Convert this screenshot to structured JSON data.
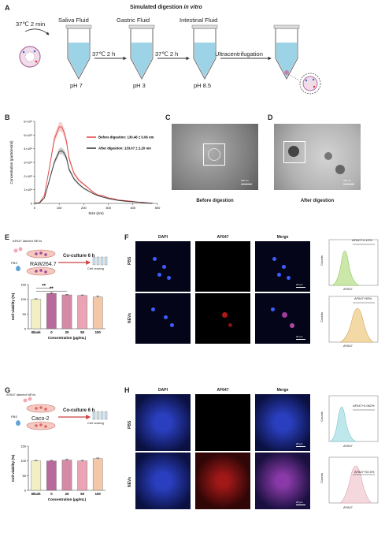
{
  "panelA": {
    "letter": "A",
    "title": "Simulated digestion ",
    "title_italic": "in vitro",
    "start": "37℃ 2 min",
    "fluids": [
      "Saliva Fluid",
      "Gastric Fluid",
      "Intestinal Fluid"
    ],
    "phs": [
      "pH 7",
      "pH 3",
      "pH 8.5"
    ],
    "arrows": [
      "37℃ 2 h",
      "37℃ 2 h",
      "Ultracentrifugation"
    ]
  },
  "panelB": {
    "letter": "B",
    "legend_before": "Before digestion: 130.46 ± 0.06 nm",
    "legend_after": "After digestion: 133.07 ± 2.20 nm",
    "ylabel": "Concentration (particles/ml)",
    "xlabel": "Size (nm)",
    "yticks": [
      "0",
      "1×10⁸",
      "2×10⁸",
      "3×10⁸",
      "4×10⁸",
      "5×10⁸",
      "6×10⁸"
    ],
    "xticks": [
      "0",
      "100",
      "200",
      "300",
      "400",
      "500"
    ]
  },
  "panelC": {
    "letter": "C",
    "caption": "Before digestion",
    "scale": "200 nm"
  },
  "panelD": {
    "letter": "D",
    "caption": "After digestion",
    "scale": "200 nm"
  },
  "panelE": {
    "letter": "E",
    "label1": "AF647 labeled NEVs",
    "pbs": "PBS",
    "cell": "RAW264.7",
    "coculture": "Co-culture 6 h",
    "craving": "Cell craving",
    "ylabel": "Cell viability (%)",
    "xlabel": "Concentration (μg/mL)",
    "sig": "**"
  },
  "panelF": {
    "letter": "F",
    "cols": [
      "DAPI",
      "AF647",
      "Merge"
    ],
    "rows": [
      "PBS",
      "NEVs"
    ],
    "hist_pbs": "AF647+4.12%",
    "hist_nevs": "AF647+95%",
    "hist_x": "AF647",
    "hist_y": "Counts",
    "scale": "25 μm"
  },
  "panelG": {
    "letter": "G",
    "label1": "AF647 labeled NEVs",
    "pbs": "PBS",
    "cell": "Caco-2",
    "coculture": "Co-culture 6 h",
    "craving": "Cell craving",
    "ylabel": "Cell viability (%)",
    "xlabel": "Concentration (μg/mL)"
  },
  "panelH": {
    "letter": "H",
    "cols": [
      "DAPI",
      "AF647",
      "Merge"
    ],
    "rows": [
      "PBS",
      "NEVs"
    ],
    "hist_pbs": "AF647+0.062%",
    "hist_nevs": "AF647+92.5%",
    "hist_x": "AF647",
    "hist_y": "Counts",
    "scale": "25 μm"
  },
  "chart_data": [
    {
      "type": "line",
      "panel": "B",
      "xlabel": "Size (nm)",
      "ylabel": "Concentration (particles/ml)",
      "xlim": [
        0,
        500
      ],
      "ylim": [
        0,
        600000000
      ],
      "series": [
        {
          "name": "Before digestion: 130.46 ± 0.06 nm",
          "color": "#e04040",
          "x": [
            0,
            20,
            40,
            60,
            80,
            100,
            110,
            120,
            130,
            140,
            160,
            180,
            200,
            220,
            240,
            260,
            280,
            300,
            320,
            340,
            360,
            380,
            400,
            420,
            440,
            460,
            480
          ],
          "y": [
            0,
            5000000,
            60000000,
            260000000,
            470000000,
            560000000,
            560000000,
            520000000,
            450000000,
            330000000,
            220000000,
            170000000,
            140000000,
            110000000,
            80000000,
            60000000,
            55000000,
            40000000,
            35000000,
            25000000,
            22000000,
            18000000,
            15000000,
            10000000,
            8000000,
            4000000,
            0
          ]
        },
        {
          "name": "After digestion: 133.07 ± 2.20 nm",
          "color": "#333333",
          "x": [
            0,
            20,
            40,
            60,
            80,
            100,
            110,
            120,
            130,
            140,
            160,
            180,
            200,
            220,
            240,
            260,
            280,
            300,
            320,
            340,
            360,
            380,
            400,
            420,
            440,
            460,
            480
          ],
          "y": [
            0,
            4000000,
            40000000,
            170000000,
            300000000,
            380000000,
            385000000,
            370000000,
            330000000,
            250000000,
            180000000,
            140000000,
            110000000,
            90000000,
            70000000,
            55000000,
            45000000,
            35000000,
            28000000,
            22000000,
            18000000,
            14000000,
            12000000,
            9000000,
            6000000,
            3000000,
            0
          ]
        }
      ]
    },
    {
      "type": "bar",
      "panel": "E",
      "categories": [
        "Blank",
        "0",
        "20",
        "50",
        "100"
      ],
      "values": [
        100,
        120,
        115,
        113,
        108
      ],
      "errors": [
        2,
        3,
        2,
        2,
        3
      ],
      "colors": [
        "#f3efc4",
        "#b86a9a",
        "#d58aa6",
        "#eba4b4",
        "#f3c7a7"
      ],
      "ylim": [
        0,
        150
      ],
      "yticks": [
        0,
        50,
        100,
        150
      ],
      "ylabel": "Cell viability (%)",
      "xlabel": "Concentration (μg/mL)"
    },
    {
      "type": "bar",
      "panel": "G",
      "categories": [
        "Blank",
        "0",
        "20",
        "50",
        "100"
      ],
      "values": [
        100,
        100,
        103,
        100,
        108
      ],
      "errors": [
        2,
        2,
        3,
        2,
        2
      ],
      "colors": [
        "#f3efc4",
        "#b86a9a",
        "#d58aa6",
        "#eba4b4",
        "#f3c7a7"
      ],
      "ylim": [
        0,
        150
      ],
      "yticks": [
        0,
        50,
        100,
        150
      ],
      "ylabel": "Cell viability (%)",
      "xlabel": "Concentration (μg/mL)"
    }
  ]
}
